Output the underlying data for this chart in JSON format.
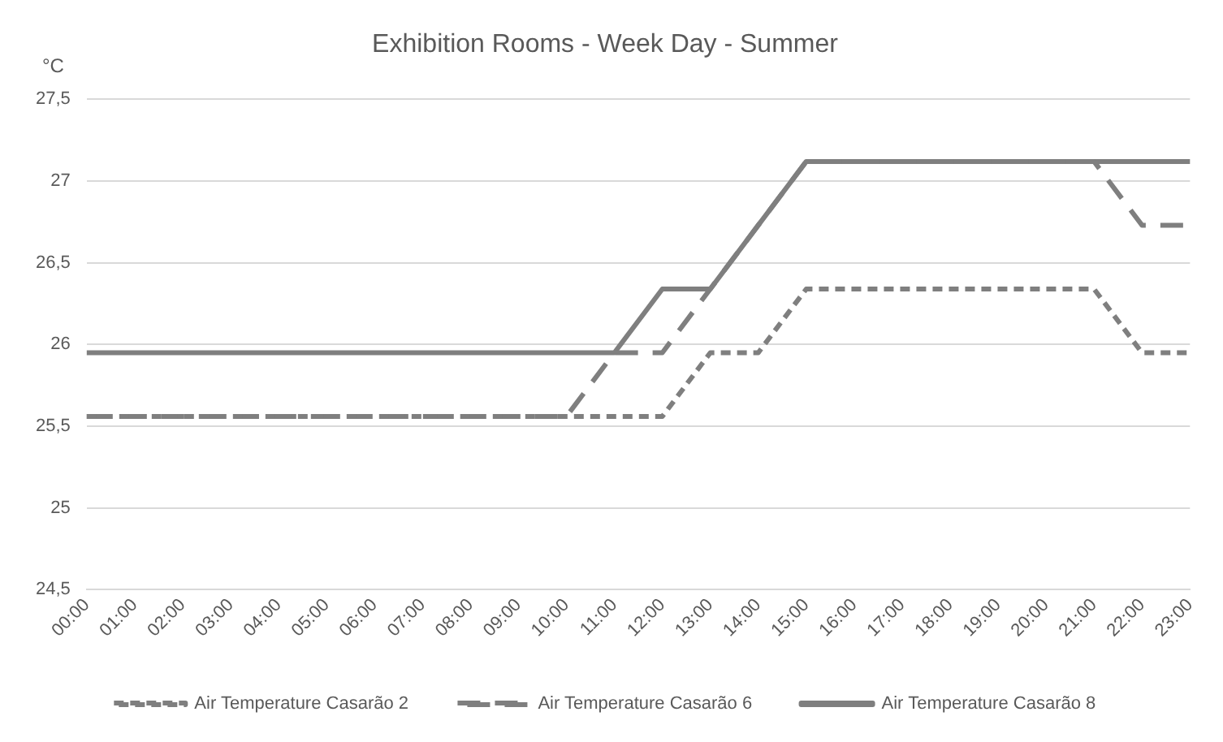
{
  "chart_data": {
    "type": "line",
    "title": "Exhibition Rooms - Week Day - Summer",
    "ylabel": "°C",
    "categories": [
      "00:00",
      "01:00",
      "02:00",
      "03:00",
      "04:00",
      "05:00",
      "06:00",
      "07:00",
      "08:00",
      "09:00",
      "10:00",
      "11:00",
      "12:00",
      "13:00",
      "14:00",
      "15:00",
      "16:00",
      "17:00",
      "18:00",
      "19:00",
      "20:00",
      "21:00",
      "22:00",
      "23:00"
    ],
    "series": [
      {
        "name": "Air Temperature Casarão 2",
        "color": "#7f7f7f",
        "line_style": "dotted",
        "values": [
          25.56,
          25.56,
          25.56,
          25.56,
          25.56,
          25.56,
          25.56,
          25.56,
          25.56,
          25.56,
          25.56,
          25.56,
          25.56,
          25.95,
          25.95,
          26.34,
          26.34,
          26.34,
          26.34,
          26.34,
          26.34,
          26.34,
          25.95,
          25.95
        ]
      },
      {
        "name": "Air Temperature Casarão 6",
        "color": "#7f7f7f",
        "line_style": "dashed",
        "values": [
          25.56,
          25.56,
          25.56,
          25.56,
          25.56,
          25.56,
          25.56,
          25.56,
          25.56,
          25.56,
          25.56,
          25.95,
          25.95,
          26.34,
          26.73,
          27.12,
          27.12,
          27.12,
          27.12,
          27.12,
          27.12,
          27.12,
          26.73,
          26.73
        ]
      },
      {
        "name": "Air Temperature Casarão 8",
        "color": "#7f7f7f",
        "line_style": "solid",
        "values": [
          25.95,
          25.95,
          25.95,
          25.95,
          25.95,
          25.95,
          25.95,
          25.95,
          25.95,
          25.95,
          25.95,
          25.95,
          26.34,
          26.34,
          26.73,
          27.12,
          27.12,
          27.12,
          27.12,
          27.12,
          27.12,
          27.12,
          27.12,
          27.12
        ]
      }
    ],
    "ylim": [
      24.5,
      27.5
    ],
    "yticks": [
      {
        "value": 24.5,
        "label": "24,5"
      },
      25,
      {
        "value": 25.5,
        "label": "25,5"
      },
      26,
      {
        "value": 26.5,
        "label": "26,5"
      },
      27,
      {
        "value": 27.5,
        "label": "27,5"
      }
    ],
    "grid": "y",
    "legend": "bottom",
    "marker": "none"
  }
}
